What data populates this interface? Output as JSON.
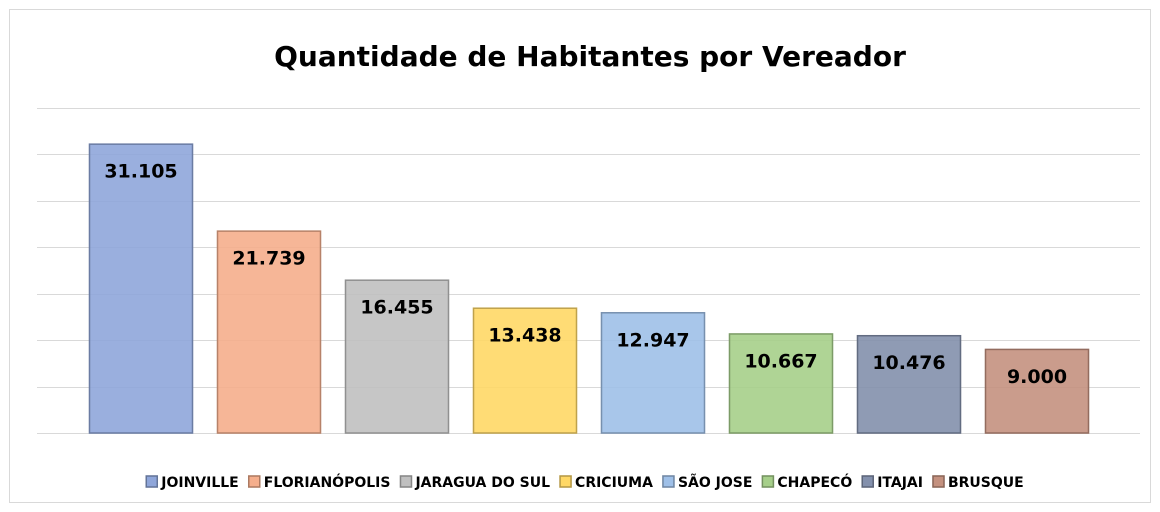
{
  "chart_data": {
    "type": "bar",
    "title": "Quantidade de Habitantes por Vereador",
    "ylim": [
      0,
      35000
    ],
    "yticks": [
      0,
      5000,
      10000,
      15000,
      20000,
      25000,
      30000,
      35000
    ],
    "grid": true,
    "legend": "bottom",
    "series": [
      {
        "name": "JOINVILLE",
        "color": "#8fa6da",
        "values": [
          31105
        ],
        "value_labels": [
          "31.105"
        ]
      },
      {
        "name": "FLORIANÓPOLIS",
        "color": "#f5ae8c",
        "values": [
          21739
        ],
        "value_labels": [
          "21.739"
        ]
      },
      {
        "name": "JARAGUA DO SUL",
        "color": "#c0c0c0",
        "values": [
          16455
        ],
        "value_labels": [
          "16.455"
        ]
      },
      {
        "name": "CRICIUMA",
        "color": "#ffd866",
        "values": [
          13438
        ],
        "value_labels": [
          "13.438"
        ]
      },
      {
        "name": "SÃO JOSE",
        "color": "#9fc0e8",
        "values": [
          12947
        ],
        "value_labels": [
          "12.947"
        ]
      },
      {
        "name": "CHAPECÓ",
        "color": "#a6cf8a",
        "values": [
          10667
        ],
        "value_labels": [
          "10.667"
        ]
      },
      {
        "name": "ITAJAI",
        "color": "#8390ac",
        "values": [
          10476
        ],
        "value_labels": [
          "10.476"
        ]
      },
      {
        "name": "BRUSQUE",
        "color": "#c4917f",
        "values": [
          9000
        ],
        "value_labels": [
          "9.000"
        ]
      }
    ]
  }
}
